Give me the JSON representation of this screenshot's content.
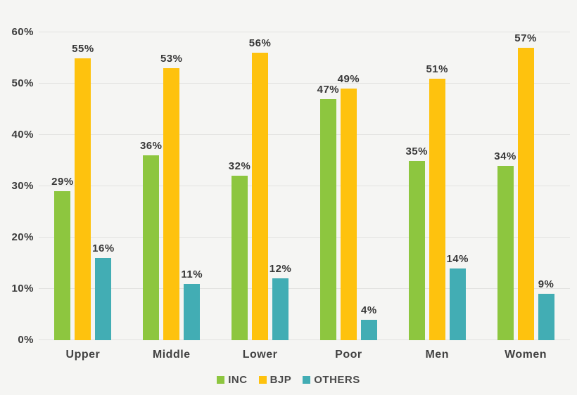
{
  "chart_data": {
    "type": "bar",
    "title": "",
    "categories": [
      "Upper",
      "Middle",
      "Lower",
      "Poor",
      "Men",
      "Women"
    ],
    "series": [
      {
        "name": "INC",
        "color": "#8dc63f",
        "values": [
          29,
          36,
          32,
          47,
          35,
          34
        ]
      },
      {
        "name": "BJP",
        "color": "#fec20e",
        "values": [
          55,
          53,
          56,
          49,
          51,
          57
        ]
      },
      {
        "name": "OTHERS",
        "color": "#42adb4",
        "values": [
          16,
          11,
          12,
          4,
          14,
          9
        ]
      }
    ],
    "ylim": [
      0,
      60
    ],
    "ytick_values": [
      0,
      10,
      20,
      30,
      40,
      50,
      60
    ],
    "ytick_labels": [
      "0%",
      "10%",
      "20%",
      "30%",
      "40%",
      "50%",
      "60%"
    ],
    "data_label_suffix": "%",
    "grid": true,
    "legend_position": "bottom",
    "background_color": "#f5f5f3",
    "gridline_color": "#e3e3e1"
  }
}
